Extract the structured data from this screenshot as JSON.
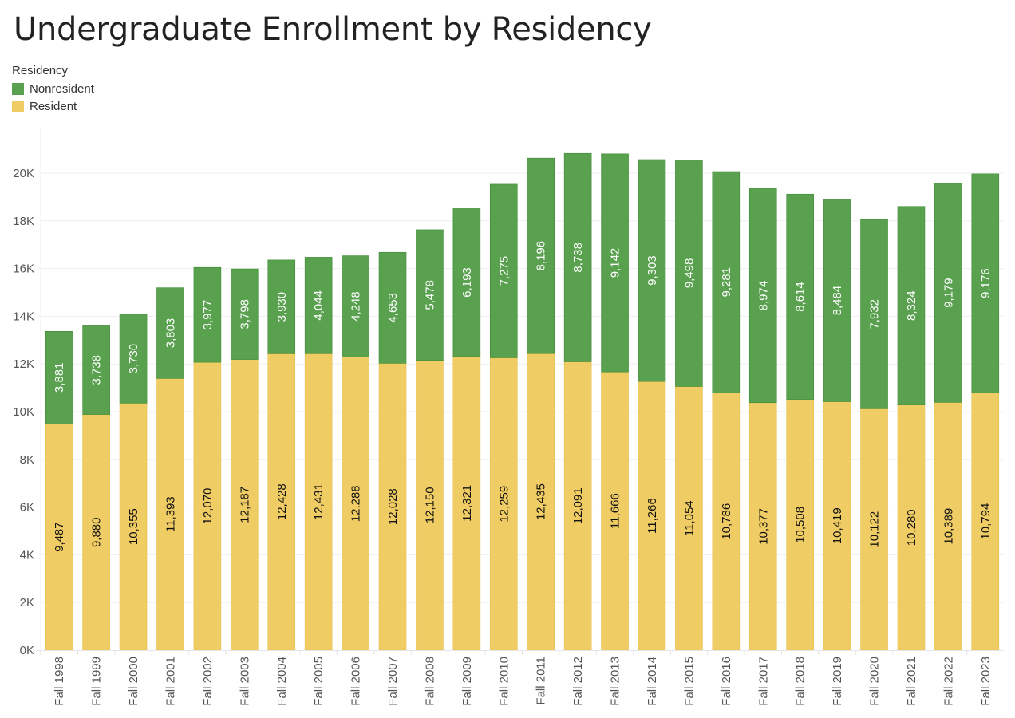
{
  "title": "Undergraduate Enrollment by Residency",
  "legend": {
    "title": "Residency",
    "items": [
      {
        "label": "Nonresident",
        "color": "#59a14f"
      },
      {
        "label": "Resident",
        "color": "#f0cc64"
      }
    ]
  },
  "chart_data": {
    "type": "bar",
    "stacked": true,
    "title": "Undergraduate Enrollment by Residency",
    "xlabel": "",
    "ylabel": "",
    "ylim": [
      0,
      21000
    ],
    "yticks": [
      0,
      2000,
      4000,
      6000,
      8000,
      10000,
      12000,
      14000,
      16000,
      18000,
      20000
    ],
    "ytick_labels": [
      "0K",
      "2K",
      "4K",
      "6K",
      "8K",
      "10K",
      "12K",
      "14K",
      "16K",
      "18K",
      "20K"
    ],
    "grid": true,
    "legend_position": "top-left",
    "categories": [
      "Fall 1998",
      "Fall 1999",
      "Fall 2000",
      "Fall 2001",
      "Fall 2002",
      "Fall 2003",
      "Fall 2004",
      "Fall 2005",
      "Fall 2006",
      "Fall 2007",
      "Fall 2008",
      "Fall 2009",
      "Fall 2010",
      "Fall 2011",
      "Fall 2012",
      "Fall 2013",
      "Fall 2014",
      "Fall 2015",
      "Fall 2016",
      "Fall 2017",
      "Fall 2018",
      "Fall 2019",
      "Fall 2020",
      "Fall 2021",
      "Fall 2022",
      "Fall 2023"
    ],
    "series": [
      {
        "name": "Resident",
        "color": "#f0cc64",
        "label_color": "#111111",
        "values": [
          9487,
          9880,
          10355,
          11393,
          12070,
          12187,
          12428,
          12431,
          12288,
          12028,
          12150,
          12321,
          12259,
          12435,
          12091,
          11666,
          11266,
          11054,
          10786,
          10377,
          10508,
          10419,
          10122,
          10280,
          10389,
          10794
        ]
      },
      {
        "name": "Nonresident",
        "color": "#59a14f",
        "label_color": "#ffffff",
        "values": [
          3881,
          3738,
          3730,
          3803,
          3977,
          3798,
          3930,
          4044,
          4248,
          4653,
          5478,
          6193,
          7275,
          8196,
          8738,
          9142,
          9303,
          9498,
          9281,
          8974,
          8614,
          8484,
          7932,
          8324,
          9179,
          9176
        ]
      }
    ]
  }
}
